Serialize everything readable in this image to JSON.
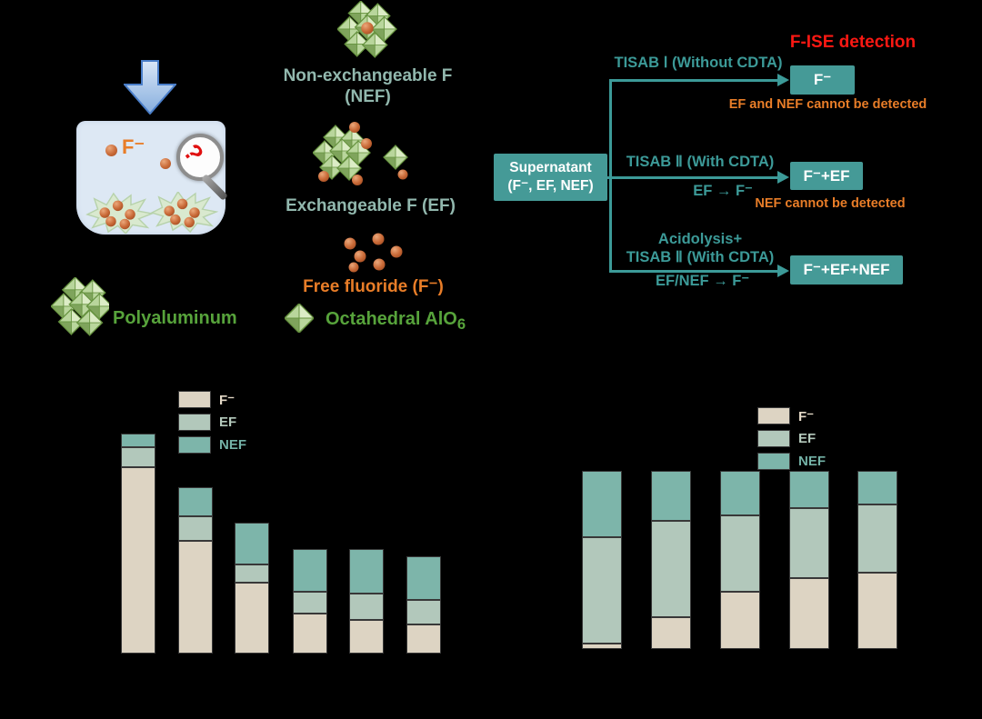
{
  "colors": {
    "background": "#000000",
    "bar_f": "#ddd4c3",
    "bar_ef": "#b2c8bb",
    "bar_nef": "#7db5aa",
    "flow_box_teal": "#459a97",
    "text_teal": "#3c9a98",
    "text_orange": "#e87d28",
    "text_red": "#fb1813",
    "text_green": "#57a33b",
    "text_pale_teal": "#92b8ae",
    "sphere_orange": "#c96a38",
    "beaker_blue": "#dde8f4"
  },
  "schematic": {
    "fluoride_label": "F⁻",
    "polyaluminum_label": "Polyaluminum",
    "octahedral_label": "Octahedral AlO",
    "octahedral_sub": "6",
    "nef_title": "Non-exchangeable F",
    "nef_subtitle": "(NEF)",
    "ef_title": "Exchangeable F (EF)",
    "free_fluoride_title": "Free fluoride (F⁻)"
  },
  "flowchart": {
    "title": "F-ISE detection",
    "source_box": {
      "line1": "Supernatant",
      "line2": "(F⁻, EF, NEF)"
    },
    "branches": [
      {
        "label": "TISAB Ⅰ (Without CDTA)",
        "sub_label": "",
        "result": "F⁻",
        "note": "EF and NEF cannot be detected"
      },
      {
        "label": "TISAB Ⅱ (With CDTA)",
        "sub_label": "EF → F⁻",
        "result": "F⁻+EF",
        "note": "NEF cannot be detected"
      },
      {
        "label": "Acidolysis+",
        "label2": "TISAB Ⅱ (With CDTA)",
        "sub_label": "EF/NEF → F⁻",
        "result": "F⁻+EF+NEF",
        "note": ""
      }
    ]
  },
  "chart_data": [
    {
      "type": "bar",
      "stacked": true,
      "title": "",
      "categories": [
        "",
        "",
        "",
        "",
        "",
        ""
      ],
      "axis_labels_visible": false,
      "grid": false,
      "legend_position": "upper-right-inside",
      "legend": [
        "F⁻",
        "EF",
        "NEF"
      ],
      "series_colors": [
        "#ddd4c3",
        "#b2c8bb",
        "#7db5aa"
      ],
      "units": "relative (tallest bar = 100; axis text not visible in image)",
      "series": [
        {
          "name": "F⁻",
          "values": [
            84,
            51,
            32,
            18,
            15,
            13
          ]
        },
        {
          "name": "EF",
          "values": [
            9,
            11,
            8,
            10,
            12,
            11
          ]
        },
        {
          "name": "NEF",
          "values": [
            6,
            13,
            19,
            19,
            20,
            20
          ]
        }
      ]
    },
    {
      "type": "bar",
      "stacked": true,
      "stack_mode": "percent",
      "title": "",
      "categories": [
        "",
        "",
        "",
        "",
        ""
      ],
      "axis_labels_visible": false,
      "grid": false,
      "legend_position": "upper-right-inside",
      "legend": [
        "F⁻",
        "EF",
        "NEF"
      ],
      "series_colors": [
        "#ddd4c3",
        "#b2c8bb",
        "#7db5aa"
      ],
      "units": "percent of total (0-100)",
      "series": [
        {
          "name": "F⁻",
          "values": [
            3,
            18,
            32,
            40,
            43
          ]
        },
        {
          "name": "EF",
          "values": [
            60,
            54,
            43,
            39,
            38
          ]
        },
        {
          "name": "NEF",
          "values": [
            37,
            28,
            25,
            21,
            19
          ]
        }
      ]
    }
  ]
}
